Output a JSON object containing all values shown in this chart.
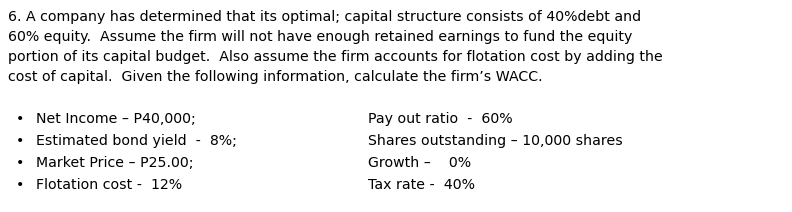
{
  "bg_color": "#ffffff",
  "text_color": "#000000",
  "para_line1": "6. A company has determined that its optimal; capital structure consists of 40%debt and",
  "para_line2": "60% equity.  Assume the firm will not have enough retained earnings to fund the equity",
  "para_line3": "portion of its capital budget.  Also assume the firm accounts for flotation cost by adding the",
  "para_line4": "cost of capital.  Given the following information, calculate the firm’s WACC.",
  "bullet_left": [
    "Net Income – P40,000;",
    "Estimated bond yield  -  8%;",
    "Market Price – P25.00;",
    "Flotation cost -  12%"
  ],
  "bullet_right": [
    "Pay out ratio  -  60%",
    "Shares outstanding – 10,000 shares",
    "Growth –    0%",
    "Tax rate -  40%"
  ],
  "font_family": "DejaVu Sans",
  "para_fontsize": 10.2,
  "bullet_fontsize": 10.2,
  "fig_width": 7.92,
  "fig_height": 2.12,
  "dpi": 100
}
